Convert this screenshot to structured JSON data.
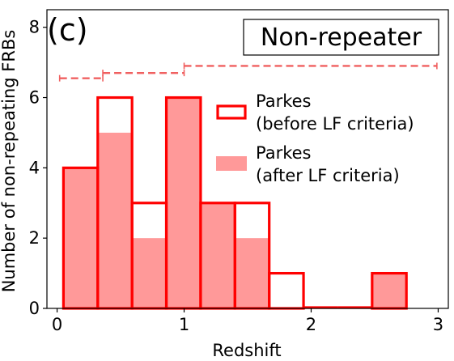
{
  "chart_data": {
    "type": "histogram",
    "panel_label": "(c)",
    "title": "Non-repeater",
    "xlabel": "Redshift",
    "ylabel": "Number of non-repeating FRBs",
    "xlim": [
      -0.08,
      3.08
    ],
    "ylim": [
      0,
      8.5
    ],
    "xticks": [
      0,
      1,
      2,
      3
    ],
    "xtick_labels": [
      "0",
      "1",
      "2",
      "3"
    ],
    "yticks": [
      0,
      2,
      4,
      6,
      8
    ],
    "ytick_labels": [
      "0",
      "2",
      "4",
      "6",
      "8"
    ],
    "grid": false,
    "legend_position": "center-right",
    "bin_edges": [
      0.05,
      0.32,
      0.59,
      0.86,
      1.13,
      1.4,
      1.67,
      1.94,
      2.21,
      2.48,
      2.75
    ],
    "series": [
      {
        "name": "Parkes\n(before LF criteria)",
        "style": "step",
        "color": "#ff0000",
        "values": [
          4,
          6,
          3,
          6,
          3,
          3,
          1,
          0,
          0,
          1
        ]
      },
      {
        "name": "Parkes\n(after LF criteria)",
        "style": "filled",
        "color": "#ff9999",
        "values": [
          4,
          5,
          2,
          6,
          3,
          2,
          0,
          0,
          0,
          1
        ]
      }
    ],
    "redshift_range_bars": [
      {
        "x_start": 0.02,
        "x_end": 0.36,
        "y": 6.55
      },
      {
        "x_start": 0.36,
        "x_end": 1.0,
        "y": 6.7
      },
      {
        "x_start": 1.0,
        "x_end": 2.99,
        "y": 6.9
      }
    ],
    "range_bar_color": "#f06060"
  }
}
